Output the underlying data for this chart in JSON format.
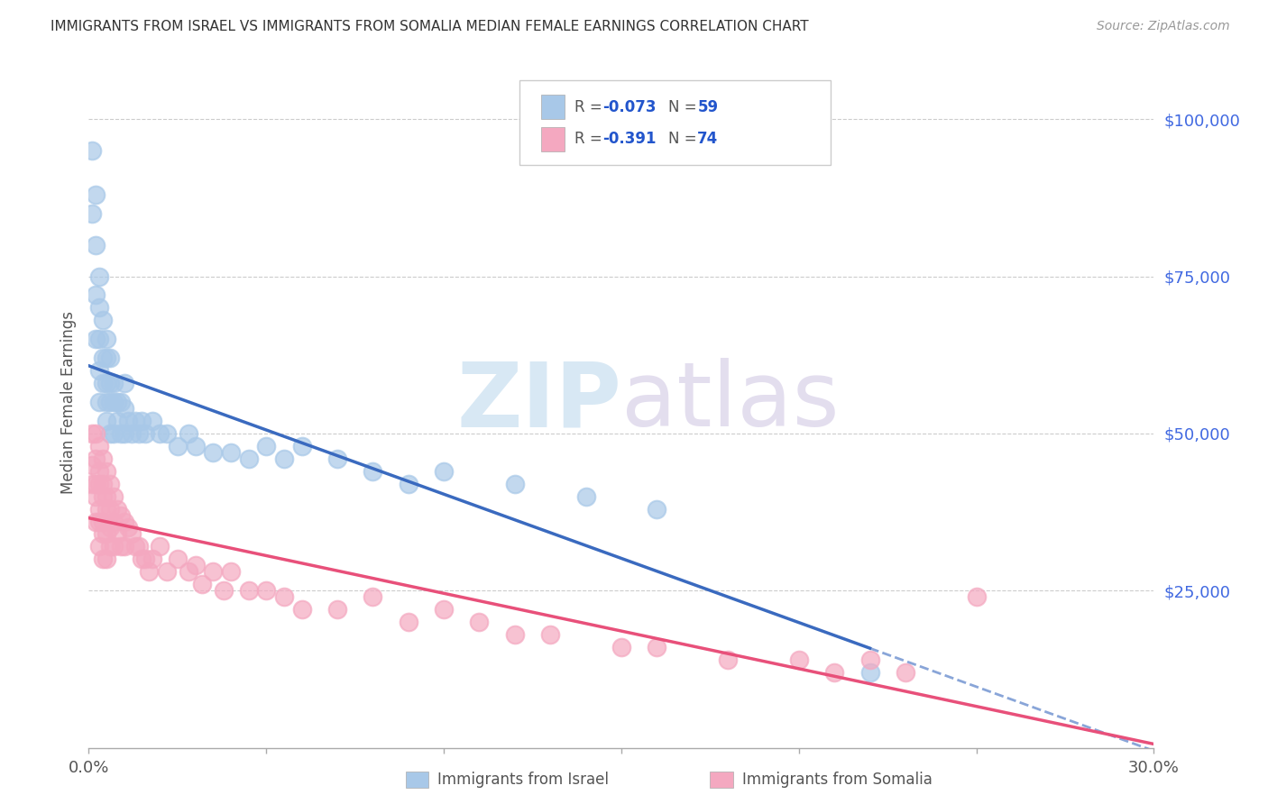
{
  "title": "IMMIGRANTS FROM ISRAEL VS IMMIGRANTS FROM SOMALIA MEDIAN FEMALE EARNINGS CORRELATION CHART",
  "source": "Source: ZipAtlas.com",
  "ylabel": "Median Female Earnings",
  "ytick_values": [
    25000,
    50000,
    75000,
    100000
  ],
  "ytick_labels": [
    "$25,000",
    "$50,000",
    "$75,000",
    "$100,000"
  ],
  "ylim": [
    0,
    110000
  ],
  "xlim": [
    0.0,
    0.3
  ],
  "R_israel": -0.073,
  "N_israel": 59,
  "R_somalia": -0.391,
  "N_somalia": 74,
  "color_israel": "#a8c8e8",
  "color_somalia": "#f4a8c0",
  "line_color_israel": "#3a6abf",
  "line_color_somalia": "#e8507a",
  "watermark_zip": "ZIP",
  "watermark_atlas": "atlas",
  "israel_x": [
    0.001,
    0.001,
    0.002,
    0.002,
    0.002,
    0.002,
    0.003,
    0.003,
    0.003,
    0.003,
    0.003,
    0.004,
    0.004,
    0.004,
    0.005,
    0.005,
    0.005,
    0.005,
    0.005,
    0.006,
    0.006,
    0.006,
    0.006,
    0.007,
    0.007,
    0.007,
    0.008,
    0.008,
    0.009,
    0.009,
    0.01,
    0.01,
    0.01,
    0.011,
    0.012,
    0.013,
    0.014,
    0.015,
    0.016,
    0.018,
    0.02,
    0.022,
    0.025,
    0.028,
    0.03,
    0.035,
    0.04,
    0.045,
    0.05,
    0.055,
    0.06,
    0.07,
    0.08,
    0.09,
    0.1,
    0.12,
    0.14,
    0.16,
    0.22
  ],
  "israel_y": [
    95000,
    85000,
    88000,
    80000,
    72000,
    65000,
    75000,
    70000,
    65000,
    60000,
    55000,
    68000,
    62000,
    58000,
    65000,
    62000,
    58000,
    55000,
    52000,
    62000,
    58000,
    55000,
    50000,
    58000,
    55000,
    50000,
    55000,
    52000,
    55000,
    50000,
    58000,
    54000,
    50000,
    52000,
    50000,
    52000,
    50000,
    52000,
    50000,
    52000,
    50000,
    50000,
    48000,
    50000,
    48000,
    47000,
    47000,
    46000,
    48000,
    46000,
    48000,
    46000,
    44000,
    42000,
    44000,
    42000,
    40000,
    38000,
    12000
  ],
  "somalia_x": [
    0.001,
    0.001,
    0.001,
    0.002,
    0.002,
    0.002,
    0.002,
    0.002,
    0.003,
    0.003,
    0.003,
    0.003,
    0.003,
    0.003,
    0.004,
    0.004,
    0.004,
    0.004,
    0.004,
    0.004,
    0.005,
    0.005,
    0.005,
    0.005,
    0.005,
    0.006,
    0.006,
    0.006,
    0.006,
    0.007,
    0.007,
    0.007,
    0.008,
    0.008,
    0.009,
    0.009,
    0.01,
    0.01,
    0.011,
    0.012,
    0.013,
    0.014,
    0.015,
    0.016,
    0.017,
    0.018,
    0.02,
    0.022,
    0.025,
    0.028,
    0.03,
    0.032,
    0.035,
    0.038,
    0.04,
    0.045,
    0.05,
    0.055,
    0.06,
    0.07,
    0.08,
    0.09,
    0.1,
    0.11,
    0.12,
    0.13,
    0.15,
    0.16,
    0.18,
    0.2,
    0.21,
    0.22,
    0.23,
    0.25
  ],
  "somalia_y": [
    50000,
    45000,
    42000,
    50000,
    46000,
    42000,
    40000,
    36000,
    48000,
    44000,
    42000,
    38000,
    36000,
    32000,
    46000,
    42000,
    40000,
    36000,
    34000,
    30000,
    44000,
    40000,
    38000,
    34000,
    30000,
    42000,
    38000,
    35000,
    32000,
    40000,
    36000,
    32000,
    38000,
    34000,
    37000,
    32000,
    36000,
    32000,
    35000,
    34000,
    32000,
    32000,
    30000,
    30000,
    28000,
    30000,
    32000,
    28000,
    30000,
    28000,
    29000,
    26000,
    28000,
    25000,
    28000,
    25000,
    25000,
    24000,
    22000,
    22000,
    24000,
    20000,
    22000,
    20000,
    18000,
    18000,
    16000,
    16000,
    14000,
    14000,
    12000,
    14000,
    12000,
    24000
  ]
}
